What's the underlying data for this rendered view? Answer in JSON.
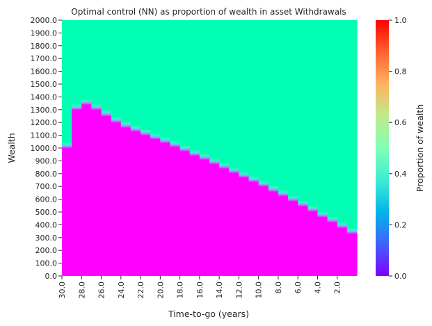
{
  "chart_data": {
    "type": "heatmap",
    "title": "Optimal control (NN) as proportion of wealth in asset Withdrawals",
    "xlabel": "Time-to-go (years)",
    "ylabel": "Wealth",
    "x_tick_labels": [
      "30.0",
      "28.0",
      "26.0",
      "24.0",
      "22.0",
      "20.0",
      "18.0",
      "16.0",
      "14.0",
      "12.0",
      "10.0",
      "8.0",
      "6.0",
      "4.0",
      "2.0"
    ],
    "y_tick_labels": [
      "0.0",
      "100.0",
      "200.0",
      "300.0",
      "400.0",
      "500.0",
      "600.0",
      "700.0",
      "800.0",
      "900.0",
      "1000.0",
      "1100.0",
      "1200.0",
      "1300.0",
      "1400.0",
      "1500.0",
      "1600.0",
      "1700.0",
      "1800.0",
      "1900.0",
      "2000.0"
    ],
    "x_range": [
      30,
      0
    ],
    "y_range": [
      0,
      2000
    ],
    "time_steps": [
      30,
      29,
      28,
      27,
      26,
      25,
      24,
      23,
      22,
      21,
      20,
      19,
      18,
      17,
      16,
      15,
      14,
      13,
      12,
      11,
      10,
      9,
      8,
      7,
      6,
      5,
      4,
      3,
      2,
      1
    ],
    "wealth_threshold": [
      1000,
      1300,
      1340,
      1300,
      1250,
      1200,
      1160,
      1130,
      1100,
      1070,
      1040,
      1010,
      975,
      940,
      910,
      875,
      840,
      805,
      770,
      735,
      700,
      660,
      625,
      585,
      545,
      505,
      460,
      420,
      375,
      330
    ],
    "value_below_threshold": 0.0,
    "value_above_threshold": 0.5,
    "colorbar": {
      "label": "Proportion of wealth",
      "range": [
        0,
        1
      ],
      "tick_labels": [
        "0.0",
        "0.2",
        "0.4",
        "0.6",
        "0.8",
        "1.0"
      ],
      "colormap": "rainbow"
    }
  }
}
